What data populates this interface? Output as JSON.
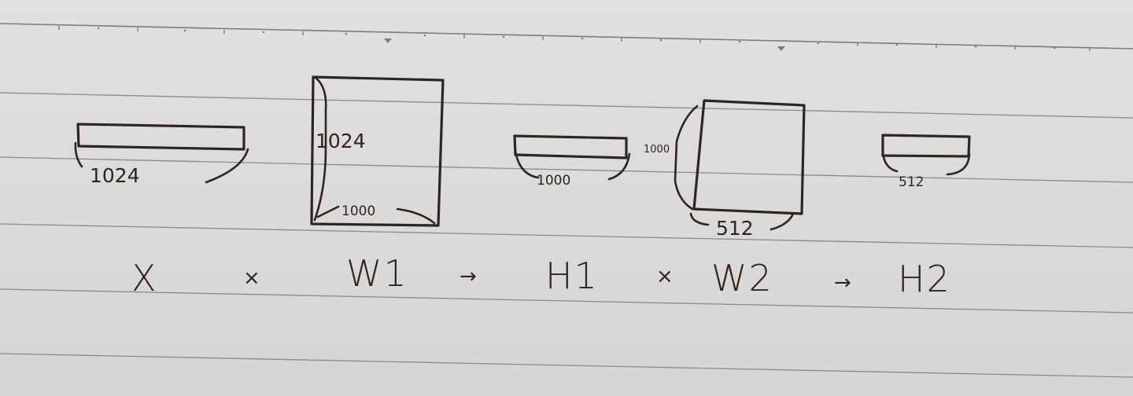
{
  "colors": {
    "paper": "#dddcda",
    "rule_line": "#7d7c82",
    "ink": "#2b2523"
  },
  "matrices": [
    {
      "id": "x",
      "symbol": "X",
      "dims": [
        "1024"
      ]
    },
    {
      "id": "w1",
      "symbol": "W1",
      "dims": [
        "1024",
        "1000"
      ]
    },
    {
      "id": "h1",
      "symbol": "H1",
      "dims": [
        "1000"
      ]
    },
    {
      "id": "w2",
      "symbol": "W2",
      "dims": [
        "1000",
        "512"
      ]
    },
    {
      "id": "h2",
      "symbol": "H2",
      "dims": [
        "512"
      ]
    }
  ],
  "operators": [
    {
      "id": "times-1",
      "symbol": "×"
    },
    {
      "id": "arrow-1",
      "symbol": "→"
    },
    {
      "id": "times-2",
      "symbol": "×"
    },
    {
      "id": "arrow-2",
      "symbol": "→"
    }
  ]
}
